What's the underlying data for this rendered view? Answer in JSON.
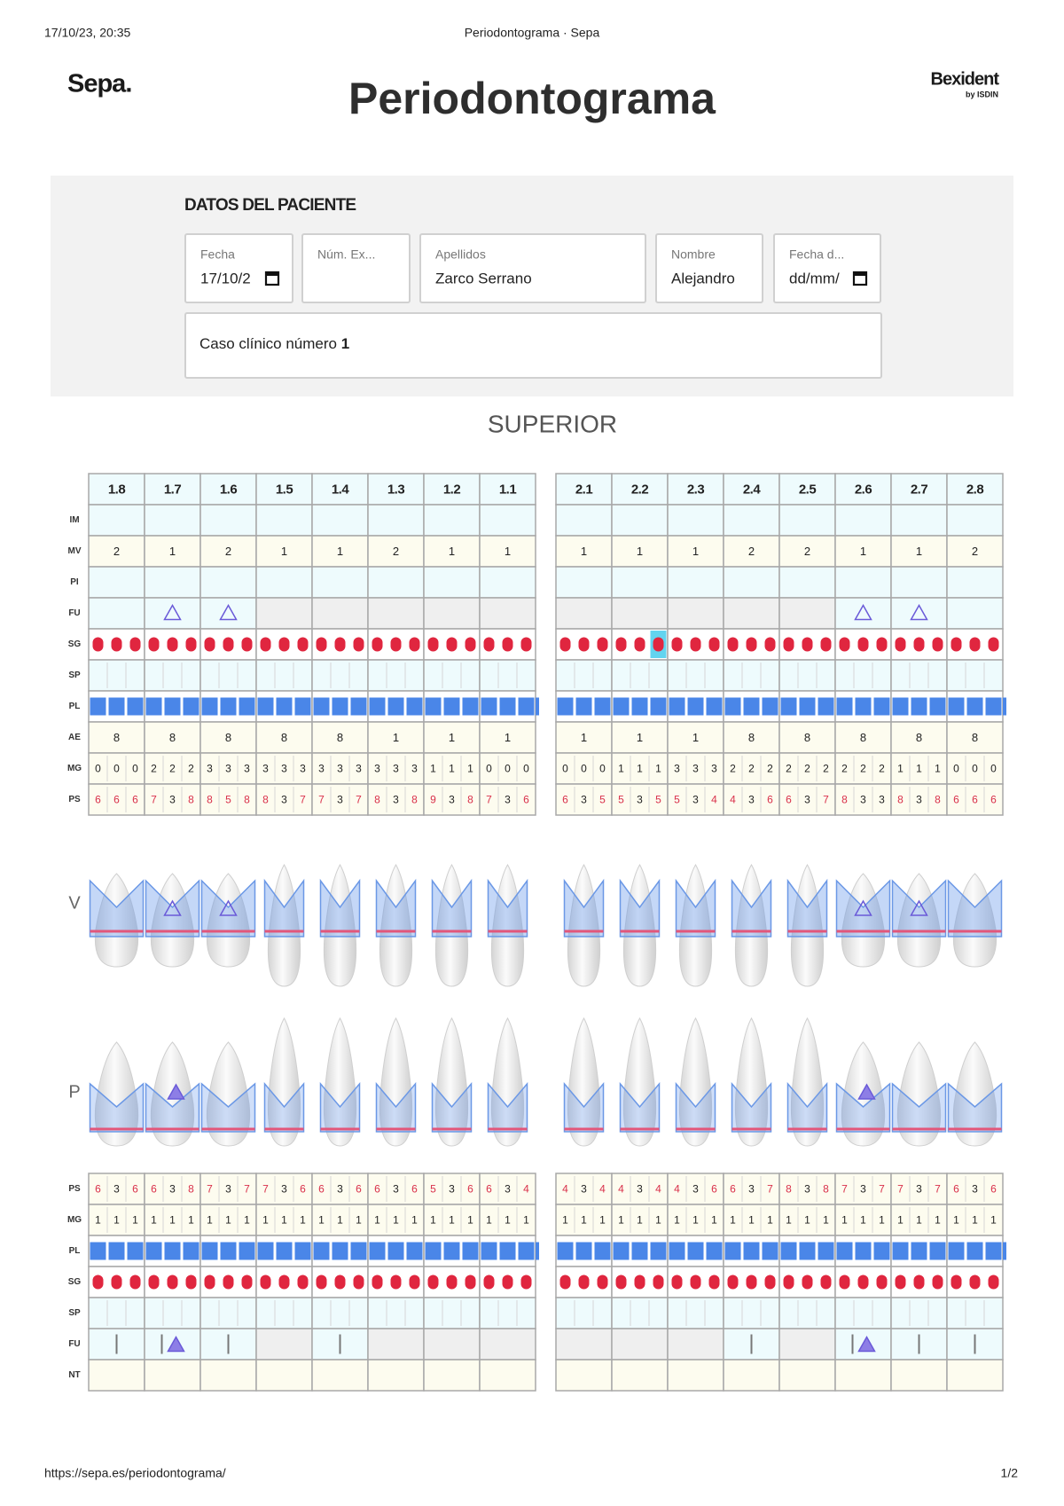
{
  "header": {
    "datetime": "17/10/23, 20:35",
    "page_title": "Periodontograma · Sepa"
  },
  "logo": "Sepa.",
  "title": "Periodontograma",
  "brand": {
    "name": "Bexident",
    "sub": "by ISDIN"
  },
  "patient": {
    "heading": "DATOS DEL PACIENTE",
    "fields": [
      {
        "label": "Fecha",
        "value": "17/10/2"
      },
      {
        "label": "Núm. Ex..."
      },
      {
        "label": "Apellidos",
        "value": "Zarco Serrano"
      },
      {
        "label": "Nombre",
        "value": "Alejandro"
      },
      {
        "label": "Fecha d...",
        "value": "dd/mm/"
      }
    ],
    "case_text": "Caso clínico número",
    "case_number": "1"
  },
  "section": "SUPERIOR",
  "upper": {
    "teeth": [
      [
        "1.8",
        "1.7",
        "1.6",
        "1.5",
        "1.4",
        "1.3",
        "1.2",
        "1.1"
      ],
      [
        "2.1",
        "2.2",
        "2.3",
        "2.4",
        "2.5",
        "2.6",
        "2.7",
        "2.8"
      ]
    ],
    "rows": [
      "IM",
      "MV",
      "PI",
      "FU",
      "SG",
      "SP",
      "PL",
      "AE",
      "MG",
      "PS"
    ],
    "mv": [
      [
        2,
        1,
        2,
        1,
        1,
        2,
        1,
        1
      ],
      [
        1,
        1,
        1,
        2,
        2,
        1,
        1,
        2
      ]
    ],
    "ae": [
      [
        8,
        8,
        8,
        8,
        8,
        1,
        1,
        1
      ],
      [
        1,
        1,
        1,
        8,
        8,
        8,
        8,
        8
      ]
    ],
    "mg": [
      [
        [
          0,
          0,
          0
        ],
        [
          2,
          2,
          2
        ],
        [
          3,
          3,
          3
        ],
        [
          3,
          3,
          3
        ],
        [
          3,
          3,
          3
        ],
        [
          3,
          3,
          3
        ],
        [
          1,
          1,
          1
        ],
        [
          0,
          0,
          0
        ]
      ],
      [
        [
          0,
          0,
          0
        ],
        [
          1,
          1,
          1
        ],
        [
          3,
          3,
          3
        ],
        [
          2,
          2,
          2
        ],
        [
          2,
          2,
          2
        ],
        [
          2,
          2,
          2
        ],
        [
          1,
          1,
          1
        ],
        [
          0,
          0,
          0
        ]
      ]
    ],
    "ps": [
      [
        [
          6,
          6,
          6
        ],
        [
          7,
          3,
          8
        ],
        [
          8,
          5,
          8
        ],
        [
          8,
          3,
          7
        ],
        [
          7,
          3,
          7
        ],
        [
          8,
          3,
          8
        ],
        [
          9,
          3,
          8
        ],
        [
          7,
          3,
          6
        ]
      ],
      [
        [
          6,
          3,
          5
        ],
        [
          5,
          3,
          5
        ],
        [
          5,
          3,
          4
        ],
        [
          4,
          3,
          6
        ],
        [
          6,
          3,
          7
        ],
        [
          8,
          3,
          3
        ],
        [
          8,
          3,
          8
        ],
        [
          6,
          6,
          6
        ]
      ]
    ]
  },
  "views": [
    "V",
    "P"
  ],
  "lower": {
    "rows": [
      "PS",
      "MG",
      "PL",
      "SG",
      "SP",
      "FU",
      "NT"
    ],
    "ps": [
      [
        [
          6,
          3,
          6
        ],
        [
          6,
          3,
          8
        ],
        [
          7,
          3,
          7
        ],
        [
          7,
          3,
          6
        ],
        [
          6,
          3,
          6
        ],
        [
          6,
          3,
          6
        ],
        [
          5,
          3,
          6
        ],
        [
          6,
          3,
          4
        ]
      ],
      [
        [
          4,
          3,
          4
        ],
        [
          4,
          3,
          4
        ],
        [
          4,
          3,
          6
        ],
        [
          6,
          3,
          7
        ],
        [
          8,
          3,
          8
        ],
        [
          7,
          3,
          7
        ],
        [
          7,
          3,
          7
        ],
        [
          6,
          3,
          6
        ]
      ]
    ],
    "mg": [
      [
        [
          1,
          1,
          1
        ],
        [
          1,
          1,
          1
        ],
        [
          1,
          1,
          1
        ],
        [
          1,
          1,
          1
        ],
        [
          1,
          1,
          1
        ],
        [
          1,
          1,
          1
        ],
        [
          1,
          1,
          1
        ],
        [
          1,
          1,
          1
        ]
      ],
      [
        [
          1,
          1,
          1
        ],
        [
          1,
          1,
          1
        ],
        [
          1,
          1,
          1
        ],
        [
          1,
          1,
          1
        ],
        [
          1,
          1,
          1
        ],
        [
          1,
          1,
          1
        ],
        [
          1,
          1,
          1
        ],
        [
          1,
          1,
          1
        ]
      ]
    ]
  },
  "footer": {
    "url": "https://sepa.es/periodontograma/",
    "page": "1/2"
  }
}
